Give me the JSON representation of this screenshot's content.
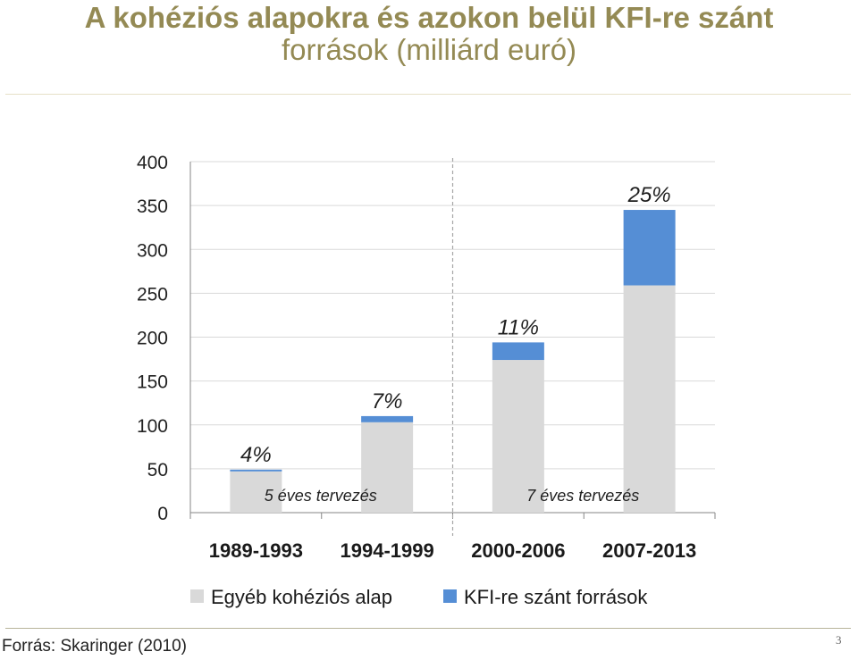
{
  "slide": {
    "title_line1": "A kohéziós alapokra és azokon belül KFI-re szánt",
    "title_line2": "források (milliárd euró)",
    "source": "Forrás: Skaringer (2010)",
    "page_number": "3",
    "title_color": "#948a54"
  },
  "chart_data": {
    "type": "bar",
    "stacked": true,
    "categories": [
      "1989-1993",
      "1994-1999",
      "2000-2006",
      "2007-2013"
    ],
    "series": [
      {
        "name": "Egyéb kohéziós alap",
        "color": "#d9d9d9",
        "values": [
          47,
          103,
          174,
          259
        ]
      },
      {
        "name": "KFI-re szánt források",
        "color": "#558ed5",
        "values": [
          2,
          7,
          20,
          86
        ]
      }
    ],
    "bar_labels": [
      "4%",
      "7%",
      "11%",
      "25%"
    ],
    "yticks": [
      "0",
      "50",
      "100",
      "150",
      "200",
      "250",
      "300",
      "350",
      "400"
    ],
    "ylim": [
      0,
      400
    ],
    "annotations": [
      "5 éves tervezés",
      "7 éves tervezés"
    ],
    "legend_position": "bottom",
    "grid": true
  }
}
